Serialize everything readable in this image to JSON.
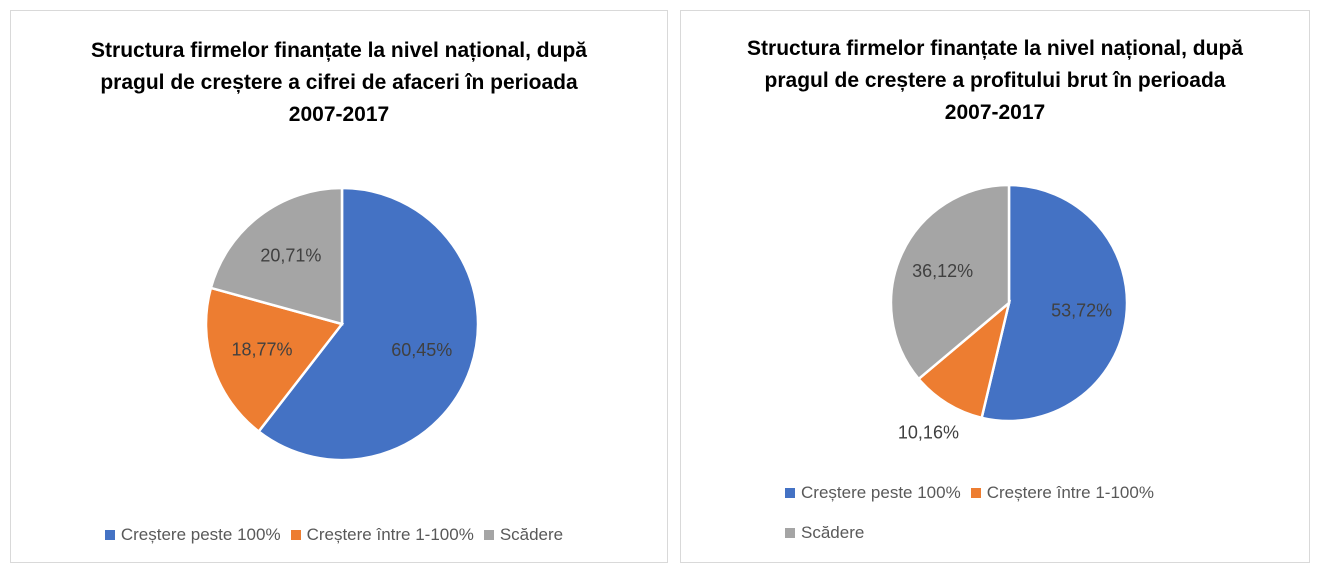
{
  "chart_data": [
    {
      "type": "pie",
      "title": "Structura firmelor finanțate la nivel național, după pragul de creștere a cifrei de afaceri în perioada 2007-2017",
      "categories": [
        "Creștere peste 100%",
        "Creștere între 1-100%",
        "Scădere"
      ],
      "values": [
        60.45,
        18.77,
        20.71
      ],
      "value_labels": [
        "60,45%",
        "18,77%",
        "20,71%"
      ],
      "colors": [
        "#4472c4",
        "#ed7d31",
        "#a5a5a5"
      ],
      "legend": "bottom"
    },
    {
      "type": "pie",
      "title": "Structura firmelor finanțate la nivel național, după pragul de creștere a profitului brut în perioada 2007-2017",
      "categories": [
        "Creștere peste 100%",
        "Creștere între 1-100%",
        "Scădere"
      ],
      "values": [
        53.72,
        10.16,
        36.12
      ],
      "value_labels": [
        "53,72%",
        "10,16%",
        "36,12%"
      ],
      "colors": [
        "#4472c4",
        "#ed7d31",
        "#a5a5a5"
      ],
      "legend": "bottom"
    }
  ]
}
